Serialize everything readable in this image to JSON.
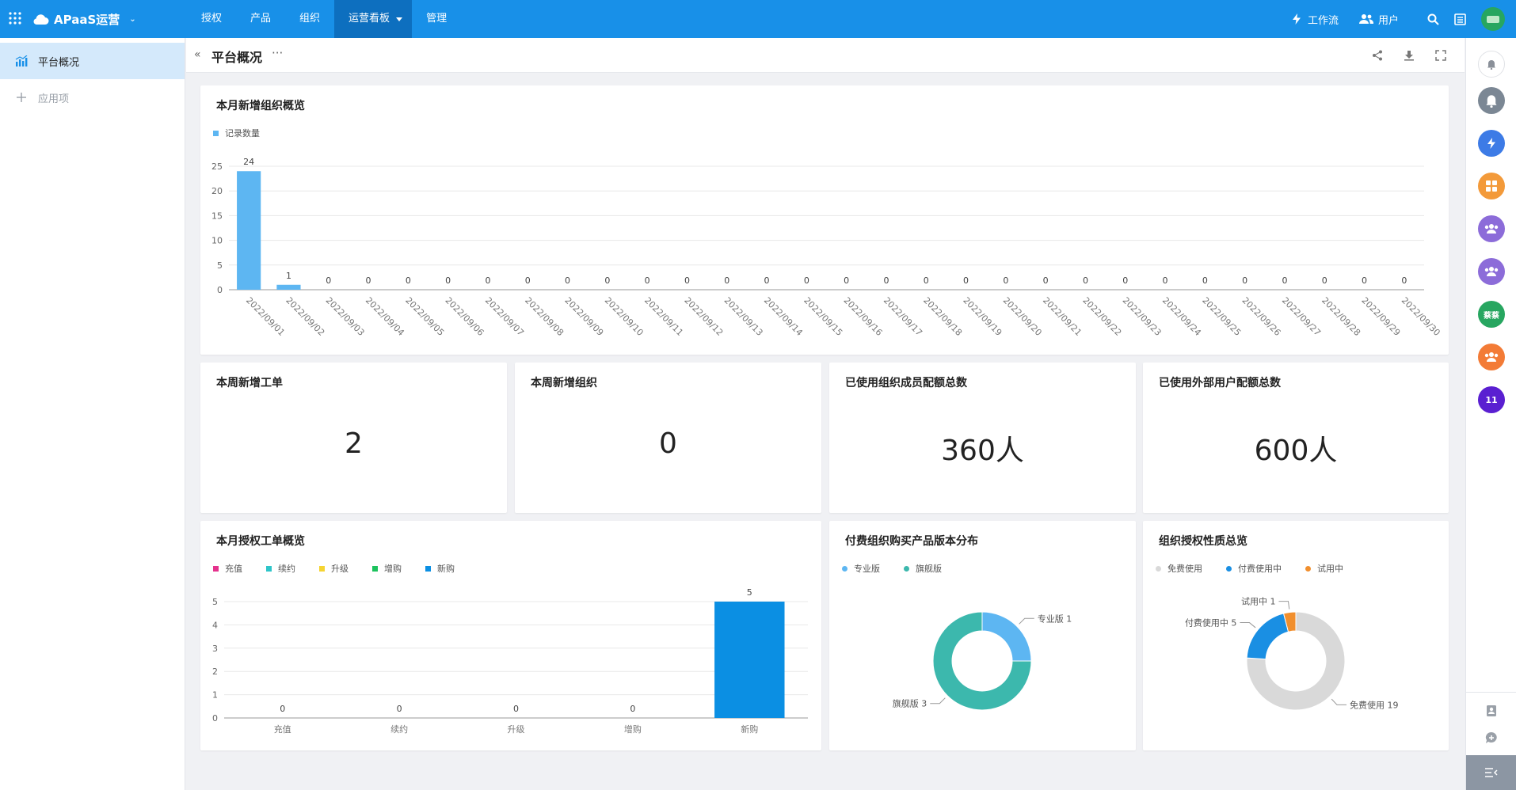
{
  "app": {
    "name": "APaaS运营"
  },
  "topnav": {
    "items": [
      {
        "label": "授权"
      },
      {
        "label": "产品"
      },
      {
        "label": "组织"
      },
      {
        "label": "运营看板"
      },
      {
        "label": "管理"
      }
    ],
    "active_index": 3,
    "workflow_label": "工作流",
    "users_label": "用户"
  },
  "sidebar": {
    "items": [
      {
        "label": "平台概况",
        "icon": "bar-chart-icon",
        "active": true
      },
      {
        "label": "应用项",
        "icon": "plus-icon",
        "active": false
      }
    ]
  },
  "page": {
    "title": "平台概况",
    "more": "···"
  },
  "cards": {
    "monthly_orgs": {
      "title": "本月新增组织概览"
    },
    "weekly_tickets": {
      "title": "本周新增工单",
      "value": "2"
    },
    "weekly_orgs": {
      "title": "本周新增组织",
      "value": "0"
    },
    "member_quota": {
      "title": "已使用组织成员配额总数",
      "value": "360人"
    },
    "external_quota": {
      "title": "已使用外部用户配额总数",
      "value": "600人"
    },
    "auth_tickets": {
      "title": "本月授权工单概览"
    },
    "paid_versions": {
      "title": "付费组织购买产品版本分布"
    },
    "auth_nature": {
      "title": "组织授权性质总览"
    }
  },
  "rail": {
    "badge_text": "11",
    "name_text": "蔡蔡"
  },
  "colors": {
    "brand": "#1890e8",
    "bar_blue": "#5db6f2",
    "auth_recharge": "#e5328d",
    "auth_renew": "#2ec5c9",
    "auth_upgrade": "#f5d432",
    "auth_add": "#1cc25d",
    "auth_new": "#0b8fe3",
    "pro": "#5db6f2",
    "flagship": "#3cb8ad",
    "free": "#d9d9d9",
    "paid": "#1a8fe3",
    "trial": "#f18f2e"
  },
  "chart_data": [
    {
      "type": "bar",
      "title": "本月新增组织概览",
      "legend": [
        "记录数量"
      ],
      "categories": [
        "2022/09/01",
        "2022/09/02",
        "2022/09/03",
        "2022/09/04",
        "2022/09/05",
        "2022/09/06",
        "2022/09/07",
        "2022/09/08",
        "2022/09/09",
        "2022/09/10",
        "2022/09/11",
        "2022/09/12",
        "2022/09/13",
        "2022/09/14",
        "2022/09/15",
        "2022/09/16",
        "2022/09/17",
        "2022/09/18",
        "2022/09/19",
        "2022/09/20",
        "2022/09/21",
        "2022/09/22",
        "2022/09/23",
        "2022/09/24",
        "2022/09/25",
        "2022/09/26",
        "2022/09/27",
        "2022/09/28",
        "2022/09/29",
        "2022/09/30"
      ],
      "values": [
        24,
        1,
        0,
        0,
        0,
        0,
        0,
        0,
        0,
        0,
        0,
        0,
        0,
        0,
        0,
        0,
        0,
        0,
        0,
        0,
        0,
        0,
        0,
        0,
        0,
        0,
        0,
        0,
        0,
        0
      ],
      "ylim": [
        0,
        25
      ],
      "yticks": [
        0,
        5,
        10,
        15,
        20,
        25
      ],
      "grid": true
    },
    {
      "type": "bar",
      "title": "本月授权工单概览",
      "legend": [
        "充值",
        "续约",
        "升级",
        "增购",
        "新购"
      ],
      "categories": [
        "充值",
        "续约",
        "升级",
        "增购",
        "新购"
      ],
      "values": [
        0,
        0,
        0,
        0,
        5
      ],
      "ylim": [
        0,
        5
      ],
      "yticks": [
        0,
        1,
        2,
        3,
        4,
        5
      ],
      "grid": true
    },
    {
      "type": "pie",
      "title": "付费组织购买产品版本分布",
      "labels": [
        "专业版",
        "旗舰版"
      ],
      "values": [
        1,
        3
      ],
      "donut": true
    },
    {
      "type": "pie",
      "title": "组织授权性质总览",
      "labels": [
        "免费使用",
        "付费使用中",
        "试用中"
      ],
      "values": [
        19,
        5,
        1
      ],
      "donut": true
    }
  ]
}
